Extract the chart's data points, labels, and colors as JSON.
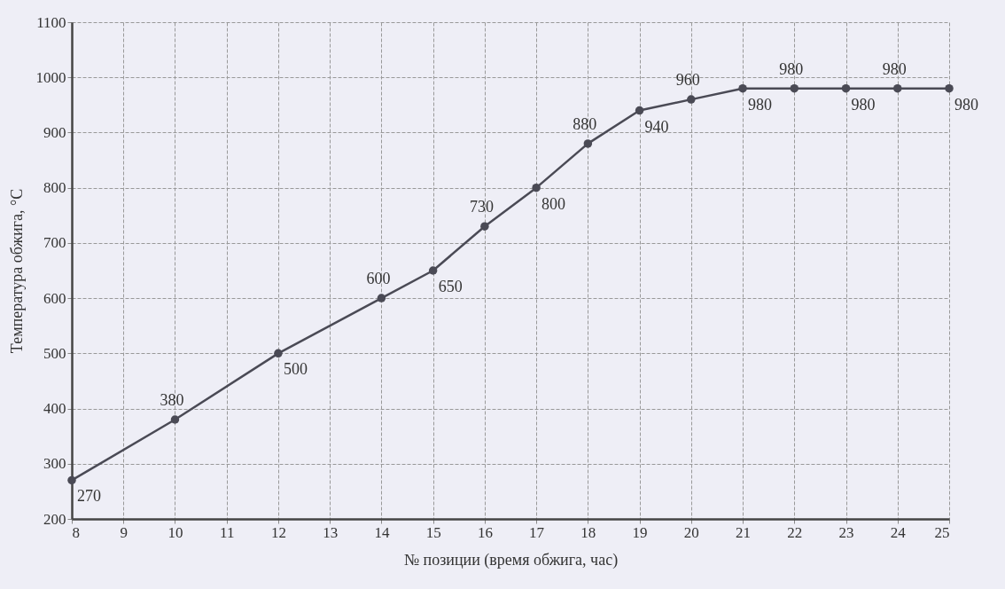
{
  "chart_data": {
    "type": "line",
    "xlabel": "№ позиции (время обжига, час)",
    "ylabel": "Температура обжига, °С",
    "x": [
      8,
      10,
      12,
      14,
      15,
      16,
      17,
      18,
      19,
      20,
      21,
      22,
      23,
      24,
      25
    ],
    "series": [
      {
        "color": "#4a4a55",
        "values": [
          270,
          380,
          500,
          600,
          650,
          730,
          800,
          880,
          940,
          960,
          980,
          980,
          980,
          980,
          980
        ]
      }
    ],
    "xlim": [
      8,
      25
    ],
    "xticks": [
      8,
      9,
      10,
      11,
      12,
      13,
      14,
      15,
      16,
      17,
      18,
      19,
      20,
      21,
      22,
      23,
      24,
      25
    ],
    "ylim": [
      200,
      1100
    ],
    "yticks": [
      200,
      300,
      400,
      500,
      600,
      700,
      800,
      900,
      1000,
      1100
    ],
    "grid": true,
    "marker": "circle",
    "line_style": "solid",
    "data_labels": true
  }
}
